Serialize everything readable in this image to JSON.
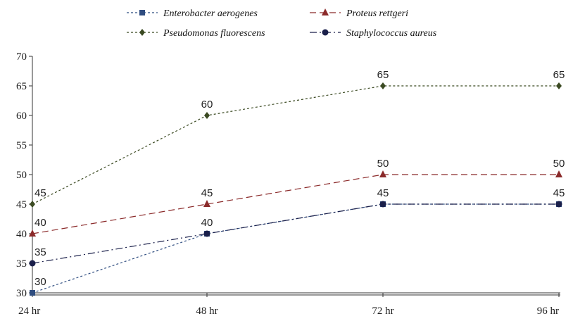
{
  "chart_data": {
    "type": "line",
    "title": "",
    "xlabel": "",
    "ylabel": "",
    "categories": [
      "24 hr",
      "48 hr",
      "72 hr",
      "96 hr"
    ],
    "ylim": [
      30,
      70
    ],
    "yticks": [
      30,
      35,
      40,
      45,
      50,
      55,
      60,
      65,
      70
    ],
    "grid": false,
    "legend_position": "top",
    "series": [
      {
        "name": "Enterobacter aerogenes",
        "values": [
          30,
          40,
          45,
          45
        ],
        "color": "#2f4d80",
        "marker": "square",
        "dash": "dotted",
        "labels": [
          "30",
          "40",
          "45",
          "45"
        ]
      },
      {
        "name": "Proteus rettgeri",
        "values": [
          40,
          45,
          50,
          50
        ],
        "color": "#8b2a2a",
        "marker": "triangle",
        "dash": "dashed",
        "labels": [
          "40",
          "45",
          "50",
          "50"
        ]
      },
      {
        "name": "Pseudomonas fluorescens",
        "values": [
          45,
          60,
          65,
          65
        ],
        "color": "#3b4a22",
        "marker": "diamond",
        "dash": "dotted",
        "labels": [
          "45",
          "60",
          "65",
          "65"
        ]
      },
      {
        "name": "Staphylococcus aureus",
        "values": [
          35,
          40,
          45,
          45
        ],
        "color": "#1a1f4a",
        "marker": "circle",
        "dash": "dashdot",
        "labels": [
          "35",
          "",
          "",
          ""
        ]
      }
    ]
  }
}
